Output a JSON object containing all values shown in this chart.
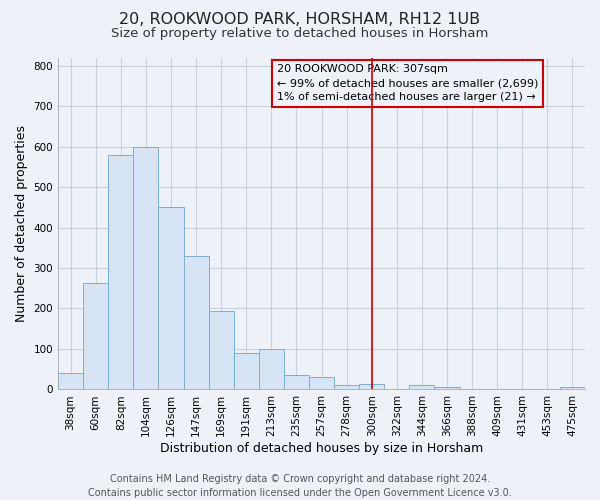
{
  "title": "20, ROOKWOOD PARK, HORSHAM, RH12 1UB",
  "subtitle": "Size of property relative to detached houses in Horsham",
  "xlabel": "Distribution of detached houses by size in Horsham",
  "ylabel": "Number of detached properties",
  "bar_color": "#d6e4f5",
  "bar_edge_color": "#7bafd4",
  "categories": [
    "38sqm",
    "60sqm",
    "82sqm",
    "104sqm",
    "126sqm",
    "147sqm",
    "169sqm",
    "191sqm",
    "213sqm",
    "235sqm",
    "257sqm",
    "278sqm",
    "300sqm",
    "322sqm",
    "344sqm",
    "366sqm",
    "388sqm",
    "409sqm",
    "431sqm",
    "453sqm",
    "475sqm"
  ],
  "values": [
    40,
    262,
    580,
    600,
    450,
    330,
    195,
    90,
    100,
    35,
    32,
    10,
    13,
    0,
    10,
    5,
    0,
    0,
    0,
    0,
    5
  ],
  "ylim": [
    0,
    820
  ],
  "yticks": [
    0,
    100,
    200,
    300,
    400,
    500,
    600,
    700,
    800
  ],
  "vline_x_index": 12,
  "vline_color": "#cc0000",
  "annotation_text_line1": "20 ROOKWOOD PARK: 307sqm",
  "annotation_text_line2": "← 99% of detached houses are smaller (2,699)",
  "annotation_text_line3": "1% of semi-detached houses are larger (21) →",
  "footer_line1": "Contains HM Land Registry data © Crown copyright and database right 2024.",
  "footer_line2": "Contains public sector information licensed under the Open Government Licence v3.0.",
  "background_color": "#eef2f8",
  "grid_color": "#c8d0dc",
  "title_fontsize": 11.5,
  "subtitle_fontsize": 9.5,
  "axis_label_fontsize": 9,
  "tick_fontsize": 7.5,
  "footer_fontsize": 7
}
